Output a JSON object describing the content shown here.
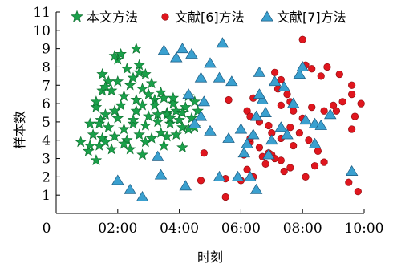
{
  "chart_data": {
    "type": "scatter",
    "xlabel": "时刻",
    "ylabel": "样本数",
    "xlim": [
      0,
      10
    ],
    "ylim": [
      0,
      11
    ],
    "x_ticks": [
      "02:00",
      "04:00",
      "06:00",
      "08:00",
      "10:00"
    ],
    "x_tick_values": [
      2,
      4,
      6,
      8,
      10
    ],
    "y_ticks": [
      "1",
      "2",
      "3",
      "4",
      "5",
      "6",
      "7",
      "8",
      "9",
      "10",
      "11"
    ],
    "origin_label": "0",
    "legend_position": "top",
    "grid": false,
    "series": [
      {
        "name": "本文方法",
        "marker": "star",
        "color": "#1aa04a",
        "points": [
          [
            0.8,
            3.9
          ],
          [
            1.1,
            4.9
          ],
          [
            1.05,
            3.4
          ],
          [
            1.3,
            2.9
          ],
          [
            1.2,
            4.3
          ],
          [
            1.4,
            3.7
          ],
          [
            1.5,
            4.1
          ],
          [
            1.45,
            5.1
          ],
          [
            1.6,
            3.9
          ],
          [
            1.3,
            5.8
          ],
          [
            1.5,
            6.7
          ],
          [
            1.6,
            5.4
          ],
          [
            1.7,
            4.7
          ],
          [
            1.8,
            3.5
          ],
          [
            1.9,
            4.2
          ],
          [
            2.0,
            5.2
          ],
          [
            2.1,
            5.9
          ],
          [
            2.2,
            4.6
          ],
          [
            2.3,
            4.0
          ],
          [
            2.4,
            3.5
          ],
          [
            2.5,
            4.9
          ],
          [
            2.6,
            5.6
          ],
          [
            2.7,
            4.3
          ],
          [
            2.8,
            3.2
          ],
          [
            2.9,
            4.8
          ],
          [
            3.0,
            5.3
          ],
          [
            3.1,
            4.1
          ],
          [
            3.2,
            6.2
          ],
          [
            3.3,
            5.0
          ],
          [
            3.4,
            4.4
          ],
          [
            3.5,
            3.7
          ],
          [
            3.6,
            5.5
          ],
          [
            3.7,
            4.9
          ],
          [
            3.8,
            6.0
          ],
          [
            3.9,
            4.3
          ],
          [
            4.0,
            5.1
          ],
          [
            4.1,
            3.6
          ],
          [
            4.2,
            5.8
          ],
          [
            4.3,
            4.6
          ],
          [
            4.4,
            5.2
          ],
          [
            4.5,
            6.1
          ],
          [
            4.6,
            5.6
          ],
          [
            1.3,
            6.1
          ],
          [
            1.8,
            6.7
          ],
          [
            2.0,
            7.2
          ],
          [
            2.2,
            6.4
          ],
          [
            2.4,
            7.0
          ],
          [
            2.6,
            6.2
          ],
          [
            2.8,
            6.8
          ],
          [
            3.0,
            6.5
          ],
          [
            3.2,
            5.9
          ],
          [
            3.4,
            6.6
          ],
          [
            3.6,
            5.4
          ],
          [
            3.8,
            6.3
          ],
          [
            1.5,
            7.6
          ],
          [
            1.7,
            7.2
          ],
          [
            2.0,
            8.4
          ],
          [
            2.3,
            7.9
          ],
          [
            2.5,
            7.4
          ],
          [
            2.7,
            8.1
          ],
          [
            2.9,
            7.6
          ],
          [
            3.1,
            7.1
          ],
          [
            2.6,
            9.0
          ],
          [
            2.7,
            7.7
          ],
          [
            1.9,
            8.6
          ],
          [
            2.1,
            8.7
          ],
          [
            1.6,
            6.9
          ],
          [
            1.9,
            5.6
          ],
          [
            2.5,
            5.1
          ],
          [
            2.8,
            5.9
          ],
          [
            3.3,
            5.4
          ],
          [
            3.5,
            6.3
          ],
          [
            3.7,
            5.2
          ],
          [
            4.1,
            4.7
          ],
          [
            4.3,
            6.4
          ],
          [
            4.5,
            4.7
          ],
          [
            1.1,
            3.7
          ],
          [
            1.4,
            4.9
          ],
          [
            2.2,
            3.8
          ],
          [
            2.9,
            3.9
          ],
          [
            3.6,
            4.2
          ],
          [
            3.9,
            5.6
          ],
          [
            4.1,
            5.5
          ]
        ]
      },
      {
        "name": "文献[6]方法",
        "marker": "circle",
        "color": "#e0161e",
        "points": [
          [
            8.0,
            9.5
          ],
          [
            8.1,
            8.1
          ],
          [
            8.3,
            7.9
          ],
          [
            8.6,
            7.5
          ],
          [
            8.8,
            8.0
          ],
          [
            9.2,
            7.6
          ],
          [
            9.6,
            7.0
          ],
          [
            7.1,
            7.7
          ],
          [
            7.3,
            7.3
          ],
          [
            7.2,
            6.8
          ],
          [
            7.5,
            6.5
          ],
          [
            7.6,
            6.1
          ],
          [
            7.3,
            5.9
          ],
          [
            7.7,
            5.6
          ],
          [
            8.0,
            5.2
          ],
          [
            8.3,
            5.8
          ],
          [
            8.7,
            5.6
          ],
          [
            9.0,
            5.9
          ],
          [
            9.3,
            6.1
          ],
          [
            9.6,
            6.5
          ],
          [
            9.7,
            5.3
          ],
          [
            9.6,
            4.6
          ],
          [
            9.1,
            5.6
          ],
          [
            6.2,
            5.6
          ],
          [
            6.3,
            5.3
          ],
          [
            6.6,
            5.0
          ],
          [
            6.9,
            4.8
          ],
          [
            7.0,
            4.4
          ],
          [
            7.3,
            4.1
          ],
          [
            7.6,
            4.7
          ],
          [
            7.9,
            4.4
          ],
          [
            8.2,
            4.0
          ],
          [
            8.5,
            3.4
          ],
          [
            8.7,
            2.8
          ],
          [
            8.4,
            2.6
          ],
          [
            8.1,
            2.0
          ],
          [
            7.6,
            2.5
          ],
          [
            7.3,
            2.9
          ],
          [
            6.9,
            3.3
          ],
          [
            6.6,
            3.6
          ],
          [
            6.3,
            3.9
          ],
          [
            6.1,
            3.2
          ],
          [
            6.2,
            2.4
          ],
          [
            6.0,
            1.8
          ],
          [
            5.5,
            0.9
          ],
          [
            5.5,
            1.9
          ],
          [
            4.7,
            1.8
          ],
          [
            4.8,
            3.3
          ],
          [
            5.6,
            6.2
          ],
          [
            6.4,
            2.0
          ],
          [
            6.8,
            2.7
          ],
          [
            7.0,
            3.2
          ],
          [
            7.7,
            3.7
          ],
          [
            6.3,
            4.1
          ],
          [
            9.5,
            1.7
          ],
          [
            9.8,
            1.2
          ],
          [
            9.9,
            6.0
          ],
          [
            6.7,
            3.1
          ],
          [
            7.4,
            2.3
          ],
          [
            7.1,
            3.0
          ],
          [
            6.4,
            6.3
          ]
        ]
      },
      {
        "name": "文献[7]方法",
        "marker": "triangle",
        "color": "#3aa0cf",
        "points": [
          [
            3.5,
            8.9
          ],
          [
            3.9,
            8.5
          ],
          [
            4.1,
            9.0
          ],
          [
            4.4,
            8.7
          ],
          [
            5.0,
            8.2
          ],
          [
            5.4,
            9.3
          ],
          [
            5.3,
            7.4
          ],
          [
            5.7,
            7.2
          ],
          [
            4.7,
            7.4
          ],
          [
            4.3,
            6.5
          ],
          [
            4.8,
            6.1
          ],
          [
            4.7,
            5.3
          ],
          [
            4.5,
            4.9
          ],
          [
            5.0,
            4.5
          ],
          [
            5.6,
            4.1
          ],
          [
            6.0,
            4.6
          ],
          [
            6.2,
            3.8
          ],
          [
            6.4,
            4.3
          ],
          [
            6.1,
            3.3
          ],
          [
            6.5,
            5.3
          ],
          [
            6.8,
            5.5
          ],
          [
            6.7,
            6.2
          ],
          [
            6.6,
            7.7
          ],
          [
            7.1,
            7.2
          ],
          [
            7.4,
            6.9
          ],
          [
            7.7,
            6.0
          ],
          [
            7.9,
            7.6
          ],
          [
            8.0,
            8.0
          ],
          [
            8.1,
            5.1
          ],
          [
            8.4,
            4.9
          ],
          [
            8.6,
            4.8
          ],
          [
            8.9,
            5.4
          ],
          [
            7.3,
            4.7
          ],
          [
            7.5,
            4.3
          ],
          [
            7.0,
            4.0
          ],
          [
            6.9,
            3.2
          ],
          [
            8.4,
            3.8
          ],
          [
            9.6,
            2.3
          ],
          [
            6.3,
            2.0
          ],
          [
            5.9,
            2.0
          ],
          [
            6.5,
            1.3
          ],
          [
            5.3,
            2.0
          ],
          [
            3.4,
            2.1
          ],
          [
            4.2,
            1.5
          ],
          [
            3.3,
            3.1
          ],
          [
            2.0,
            1.8
          ],
          [
            2.4,
            1.3
          ],
          [
            2.8,
            0.9
          ],
          [
            6.6,
            6.5
          ]
        ]
      }
    ]
  }
}
